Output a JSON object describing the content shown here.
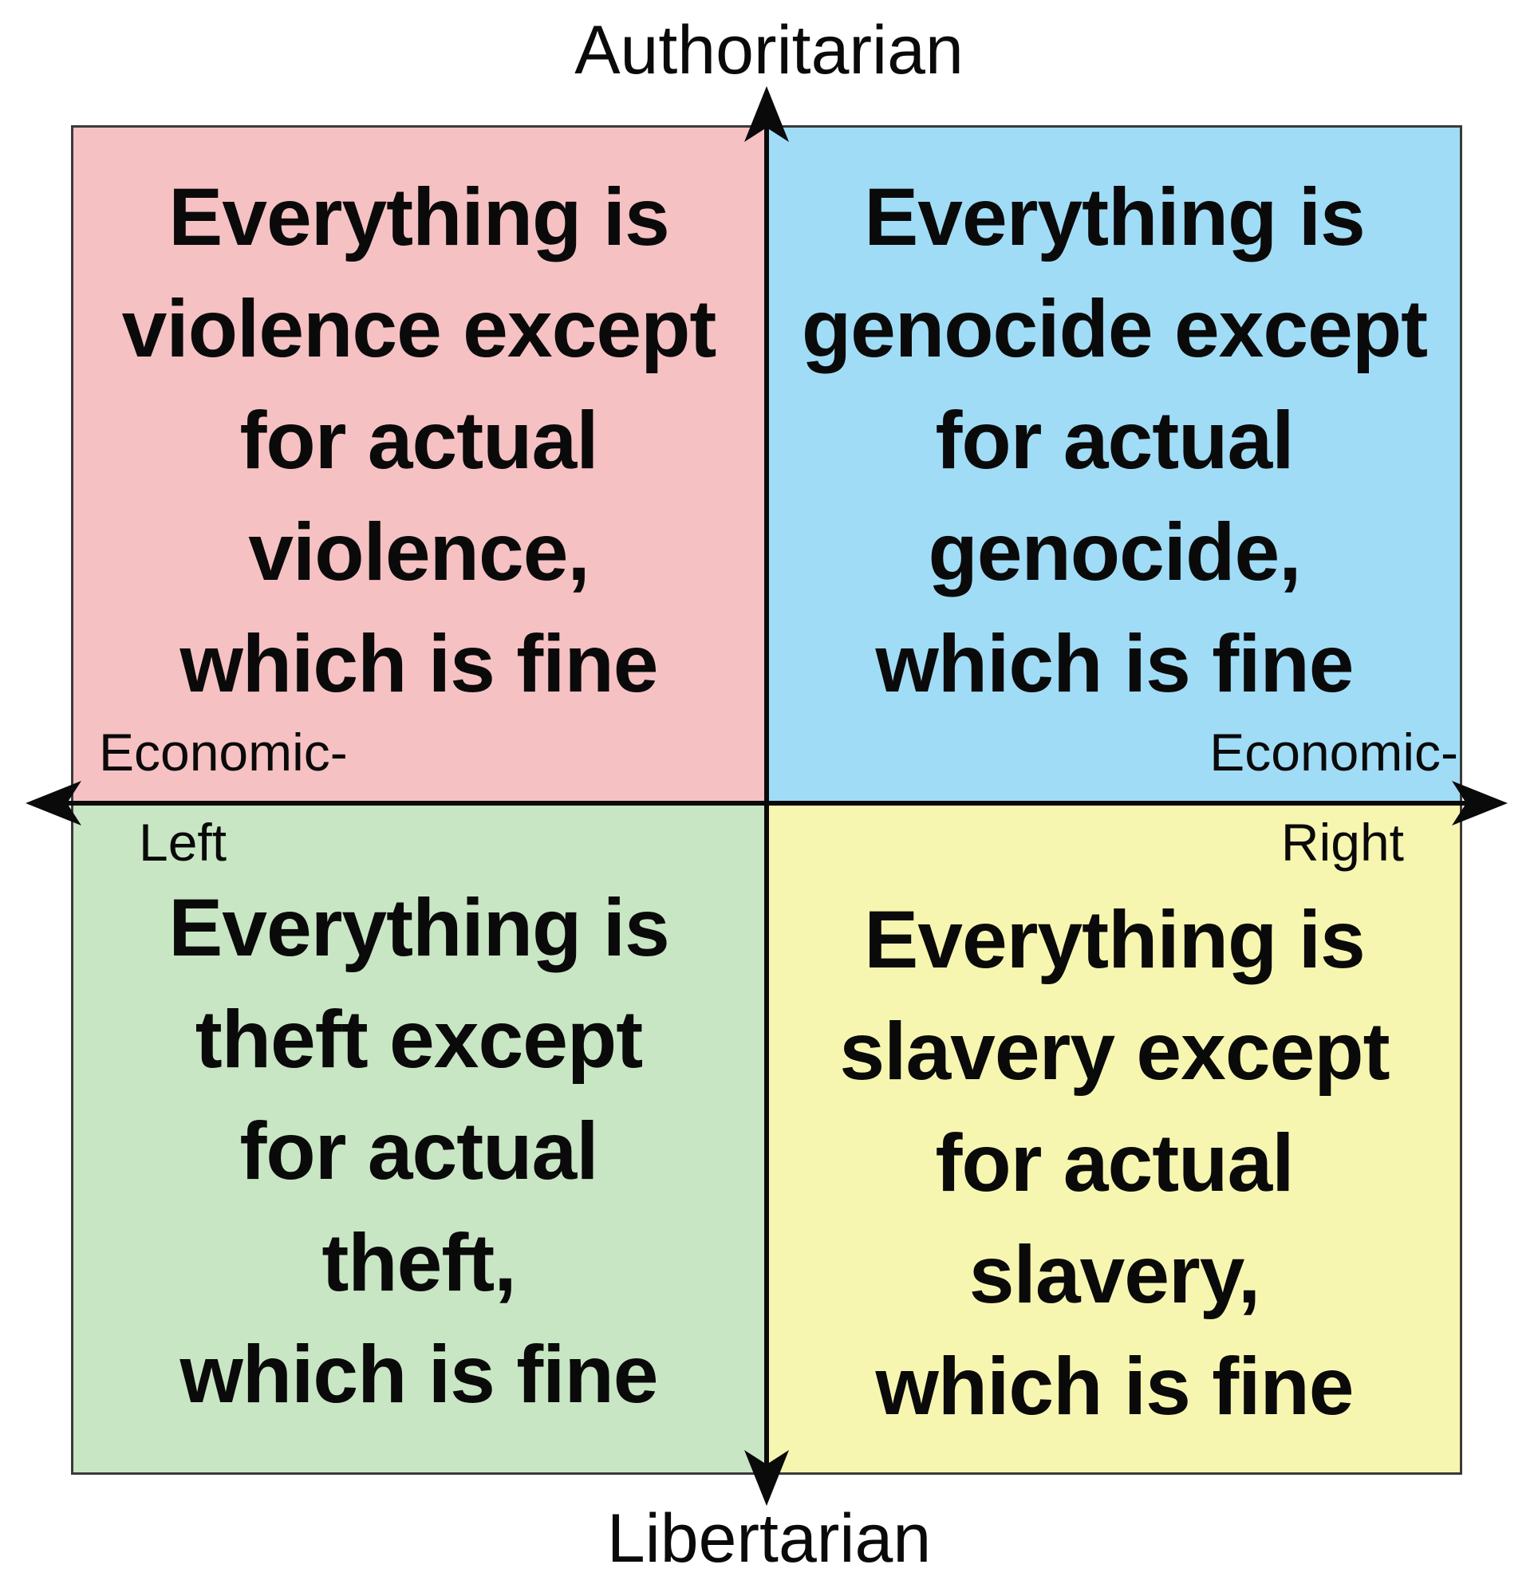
{
  "axes": {
    "top": "Authoritarian",
    "bottom": "Libertarian",
    "left_line1": "Economic-",
    "left_line2": "Left",
    "right_line1": "Economic-",
    "right_line2": "Right"
  },
  "quadrants": {
    "top_left": {
      "color": "#f6c1c3",
      "lines": [
        "Everything is",
        "violence except",
        "for actual",
        "violence,",
        "which is fine"
      ]
    },
    "top_right": {
      "color": "#a0dcf6",
      "lines": [
        "Everything is",
        "genocide except",
        "for actual",
        "genocide,",
        "which is fine"
      ]
    },
    "bottom_left": {
      "color": "#c8e6c4",
      "lines": [
        "Everything is",
        "theft except",
        "for actual",
        "theft,",
        "which is fine"
      ]
    },
    "bottom_right": {
      "color": "#f6f6b0",
      "lines": [
        "Everything is",
        "slavery except",
        "for actual",
        "slavery,",
        "which is fine"
      ]
    }
  }
}
